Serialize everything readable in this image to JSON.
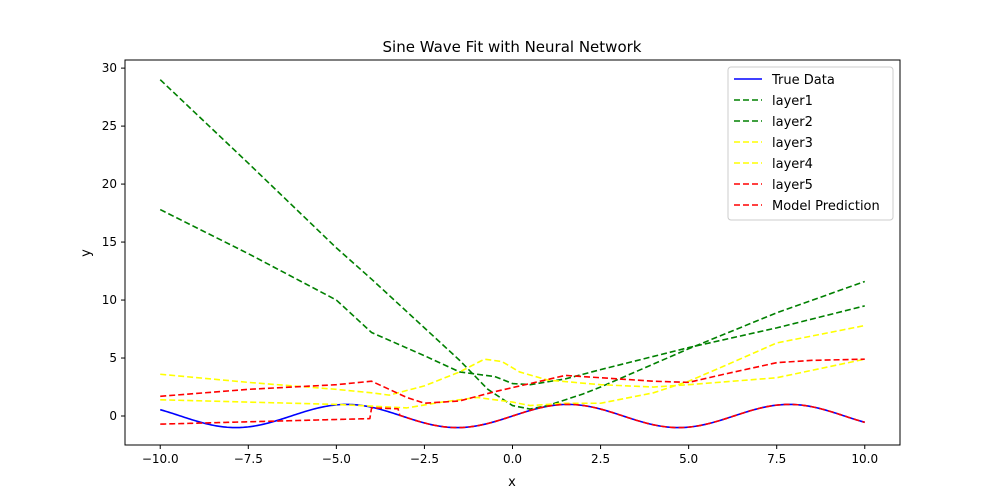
{
  "chart_data": {
    "type": "line",
    "title": "Sine Wave Fit with Neural Network",
    "xlabel": "x",
    "ylabel": "y",
    "xlim": [
      -11.0,
      11.0
    ],
    "ylim": [
      -2.5,
      30.7
    ],
    "xticks": [
      -10.0,
      -7.5,
      -5.0,
      -2.5,
      0.0,
      2.5,
      5.0,
      7.5,
      10.0
    ],
    "xtick_labels": [
      "−10.0",
      "−7.5",
      "−5.0",
      "−2.5",
      "0.0",
      "2.5",
      "5.0",
      "7.5",
      "10.0"
    ],
    "yticks": [
      0,
      5,
      10,
      15,
      20,
      25,
      30
    ],
    "ytick_labels": [
      "0",
      "5",
      "10",
      "15",
      "20",
      "25",
      "30"
    ],
    "grid": false,
    "legend_position": "top-right",
    "series": [
      {
        "name": "True Data",
        "color": "#0000ff",
        "style": "solid",
        "function": "sin"
      },
      {
        "name": "layer1",
        "color": "#008000",
        "style": "dashed",
        "points": [
          [
            -10,
            29.0
          ],
          [
            -7.5,
            21.8
          ],
          [
            -5,
            14.5
          ],
          [
            -4,
            11.8
          ],
          [
            -2.5,
            7.6
          ],
          [
            -1.5,
            4.8
          ],
          [
            -0.7,
            2.3
          ],
          [
            0,
            0.9
          ],
          [
            0.5,
            0.6
          ],
          [
            1,
            0.9
          ],
          [
            2,
            1.9
          ],
          [
            2.5,
            2.5
          ],
          [
            5,
            5.8
          ],
          [
            7.5,
            8.9
          ],
          [
            10,
            11.6
          ]
        ]
      },
      {
        "name": "layer2",
        "color": "#008000",
        "style": "dashed",
        "points": [
          [
            -10,
            17.8
          ],
          [
            -7.5,
            14.0
          ],
          [
            -5,
            10.0
          ],
          [
            -4,
            7.2
          ],
          [
            -2.5,
            5.2
          ],
          [
            -1.5,
            3.8
          ],
          [
            -1,
            3.6
          ],
          [
            -0.5,
            3.4
          ],
          [
            0,
            2.8
          ],
          [
            0.5,
            2.7
          ],
          [
            1.5,
            3.2
          ],
          [
            2.5,
            4.0
          ],
          [
            5,
            5.9
          ],
          [
            7.5,
            7.6
          ],
          [
            10,
            9.5
          ]
        ]
      },
      {
        "name": "layer3",
        "color": "#ffff00",
        "style": "dashed",
        "points": [
          [
            -10,
            3.6
          ],
          [
            -7.5,
            2.9
          ],
          [
            -5,
            2.3
          ],
          [
            -4,
            2.0
          ],
          [
            -3.5,
            1.8
          ],
          [
            -2.5,
            2.6
          ],
          [
            -1.5,
            3.8
          ],
          [
            -0.8,
            4.9
          ],
          [
            -0.3,
            4.7
          ],
          [
            0.2,
            3.8
          ],
          [
            1,
            3.1
          ],
          [
            2.5,
            2.7
          ],
          [
            4,
            2.5
          ],
          [
            5,
            2.7
          ],
          [
            7.5,
            3.3
          ],
          [
            10,
            4.9
          ]
        ]
      },
      {
        "name": "layer4",
        "color": "#ffff00",
        "style": "dashed",
        "points": [
          [
            -10,
            1.4
          ],
          [
            -7.5,
            1.2
          ],
          [
            -5,
            1.0
          ],
          [
            -3,
            0.7
          ],
          [
            -2,
            1.2
          ],
          [
            -1,
            1.6
          ],
          [
            0,
            1.2
          ],
          [
            0.5,
            0.9
          ],
          [
            1.5,
            1.1
          ],
          [
            2.5,
            1.1
          ],
          [
            4,
            2.0
          ],
          [
            5,
            3.0
          ],
          [
            6,
            4.3
          ],
          [
            7.5,
            6.3
          ],
          [
            10,
            7.8
          ]
        ]
      },
      {
        "name": "layer5",
        "color": "#ff0000",
        "style": "dashed",
        "points": [
          [
            -10,
            1.7
          ],
          [
            -7.5,
            2.3
          ],
          [
            -5,
            2.7
          ],
          [
            -4,
            3.0
          ],
          [
            -3,
            1.6
          ],
          [
            -2.5,
            1.1
          ],
          [
            -1.5,
            1.3
          ],
          [
            -0.5,
            2.1
          ],
          [
            0.5,
            2.8
          ],
          [
            1.5,
            3.5
          ],
          [
            2.5,
            3.3
          ],
          [
            4,
            3.0
          ],
          [
            5,
            2.9
          ],
          [
            6,
            3.6
          ],
          [
            7.5,
            4.6
          ],
          [
            8.5,
            4.8
          ],
          [
            10,
            4.9
          ]
        ]
      },
      {
        "name": "Model Prediction",
        "color": "#ff0000",
        "style": "dashed",
        "function": "pred"
      }
    ]
  }
}
